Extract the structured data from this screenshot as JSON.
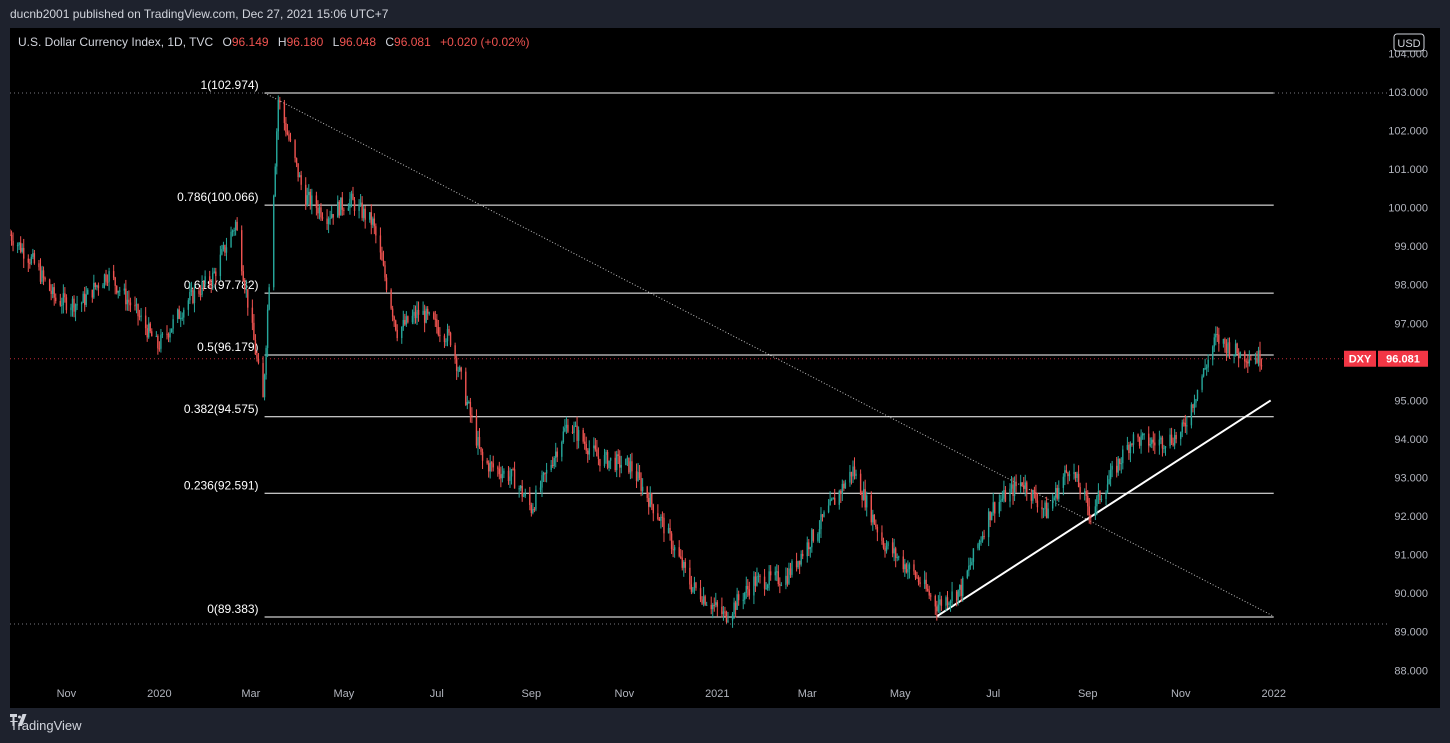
{
  "publisher_line": "ducnb2001 published on TradingView.com, Dec 27, 2021 15:06 UTC+7",
  "legend": {
    "symbol": "U.S. Dollar Currency Index, 1D, TVC",
    "open_label": "O",
    "open": "96.149",
    "high_label": "H",
    "high": "96.180",
    "low_label": "L",
    "low": "96.048",
    "close_label": "C",
    "close": "96.081",
    "change": "+0.020 (+0.02%)"
  },
  "currency_badge": "USD",
  "price_tag": {
    "symbol": "DXY",
    "value": "96.081"
  },
  "footer_brand": "TradingView",
  "colors": {
    "background": "#000000",
    "up": "#26a69a",
    "down": "#ef5350",
    "price_tag": "#f23645",
    "fib_line": "#ffffff"
  },
  "chart_data": {
    "type": "candlestick",
    "title": "U.S. Dollar Currency Index, 1D, TVC",
    "ylim": [
      87.8,
      104.4
    ],
    "y_ticks": [
      "104.000",
      "103.000",
      "102.000",
      "101.000",
      "100.000",
      "99.000",
      "98.000",
      "97.000",
      "96.000",
      "95.000",
      "94.000",
      "93.000",
      "92.000",
      "91.000",
      "90.000",
      "89.000",
      "88.000"
    ],
    "x_ticks": [
      "Nov",
      "2020",
      "Mar",
      "May",
      "Jul",
      "Sep",
      "Nov",
      "2021",
      "Mar",
      "May",
      "Jul",
      "Sep",
      "Nov",
      "2022"
    ],
    "x_tick_dates": [
      "2019-11-01",
      "2020-01-01",
      "2020-03-01",
      "2020-05-01",
      "2020-07-01",
      "2020-09-01",
      "2020-11-01",
      "2021-01-01",
      "2021-03-01",
      "2021-05-01",
      "2021-07-01",
      "2021-09-01",
      "2021-11-01",
      "2022-01-01"
    ],
    "x_range": [
      "2019-09-25",
      "2022-03-15"
    ],
    "approx_close_path": [
      {
        "date": "2019-09-25",
        "close": 99.3
      },
      {
        "date": "2019-10-10",
        "close": 98.6
      },
      {
        "date": "2019-10-25",
        "close": 97.6
      },
      {
        "date": "2019-11-10",
        "close": 97.5
      },
      {
        "date": "2019-11-28",
        "close": 98.3
      },
      {
        "date": "2019-12-15",
        "close": 97.4
      },
      {
        "date": "2019-12-31",
        "close": 96.4
      },
      {
        "date": "2020-01-20",
        "close": 97.6
      },
      {
        "date": "2020-02-05",
        "close": 98.2
      },
      {
        "date": "2020-02-20",
        "close": 99.6
      },
      {
        "date": "2020-03-09",
        "close": 95.0
      },
      {
        "date": "2020-03-19",
        "close": 102.8
      },
      {
        "date": "2020-04-05",
        "close": 100.3
      },
      {
        "date": "2020-04-20",
        "close": 99.8
      },
      {
        "date": "2020-05-05",
        "close": 100.2
      },
      {
        "date": "2020-05-20",
        "close": 99.6
      },
      {
        "date": "2020-06-05",
        "close": 96.8
      },
      {
        "date": "2020-06-20",
        "close": 97.3
      },
      {
        "date": "2020-07-10",
        "close": 96.6
      },
      {
        "date": "2020-07-31",
        "close": 93.4
      },
      {
        "date": "2020-08-20",
        "close": 93.0
      },
      {
        "date": "2020-09-01",
        "close": 92.2
      },
      {
        "date": "2020-09-25",
        "close": 94.4
      },
      {
        "date": "2020-10-15",
        "close": 93.5
      },
      {
        "date": "2020-11-05",
        "close": 93.3
      },
      {
        "date": "2020-11-25",
        "close": 91.9
      },
      {
        "date": "2020-12-15",
        "close": 90.2
      },
      {
        "date": "2021-01-06",
        "close": 89.4
      },
      {
        "date": "2021-01-25",
        "close": 90.3
      },
      {
        "date": "2021-02-15",
        "close": 90.4
      },
      {
        "date": "2021-03-05",
        "close": 91.5
      },
      {
        "date": "2021-03-31",
        "close": 93.2
      },
      {
        "date": "2021-04-20",
        "close": 91.3
      },
      {
        "date": "2021-05-10",
        "close": 90.5
      },
      {
        "date": "2021-05-25",
        "close": 89.7
      },
      {
        "date": "2021-06-10",
        "close": 90.1
      },
      {
        "date": "2021-06-30",
        "close": 92.2
      },
      {
        "date": "2021-07-20",
        "close": 92.9
      },
      {
        "date": "2021-08-05",
        "close": 92.1
      },
      {
        "date": "2021-08-20",
        "close": 93.3
      },
      {
        "date": "2021-09-03",
        "close": 92.1
      },
      {
        "date": "2021-09-30",
        "close": 94.0
      },
      {
        "date": "2021-10-15",
        "close": 93.9
      },
      {
        "date": "2021-11-01",
        "close": 94.1
      },
      {
        "date": "2021-11-24",
        "close": 96.6
      },
      {
        "date": "2021-12-10",
        "close": 96.2
      },
      {
        "date": "2021-12-27",
        "close": 96.081
      }
    ],
    "fibonacci": [
      {
        "ratio_label": "1(102.974)",
        "level": 102.974
      },
      {
        "ratio_label": "0.786(100.066)",
        "level": 100.066
      },
      {
        "ratio_label": "0.618(97.782)",
        "level": 97.782
      },
      {
        "ratio_label": "0.5(96.179)",
        "level": 96.179
      },
      {
        "ratio_label": "0.382(94.575)",
        "level": 94.575
      },
      {
        "ratio_label": "0.236(92.591)",
        "level": 92.591
      },
      {
        "ratio_label": "0(89.383)",
        "level": 89.383
      }
    ],
    "fib_range": {
      "start": "2020-03-10",
      "end": "2022-01-01"
    },
    "horizontal_dotted_levels": [
      102.974,
      96.081,
      89.2
    ],
    "trendlines": [
      {
        "style": "dotted",
        "start": {
          "date": "2020-03-10",
          "price": 102.974
        },
        "end": {
          "date": "2022-01-01",
          "price": 89.4
        }
      },
      {
        "style": "solid",
        "start": {
          "date": "2021-05-25",
          "price": 89.4
        },
        "end": {
          "date": "2021-12-30",
          "price": 95.0
        }
      }
    ],
    "last_price": 96.081
  }
}
